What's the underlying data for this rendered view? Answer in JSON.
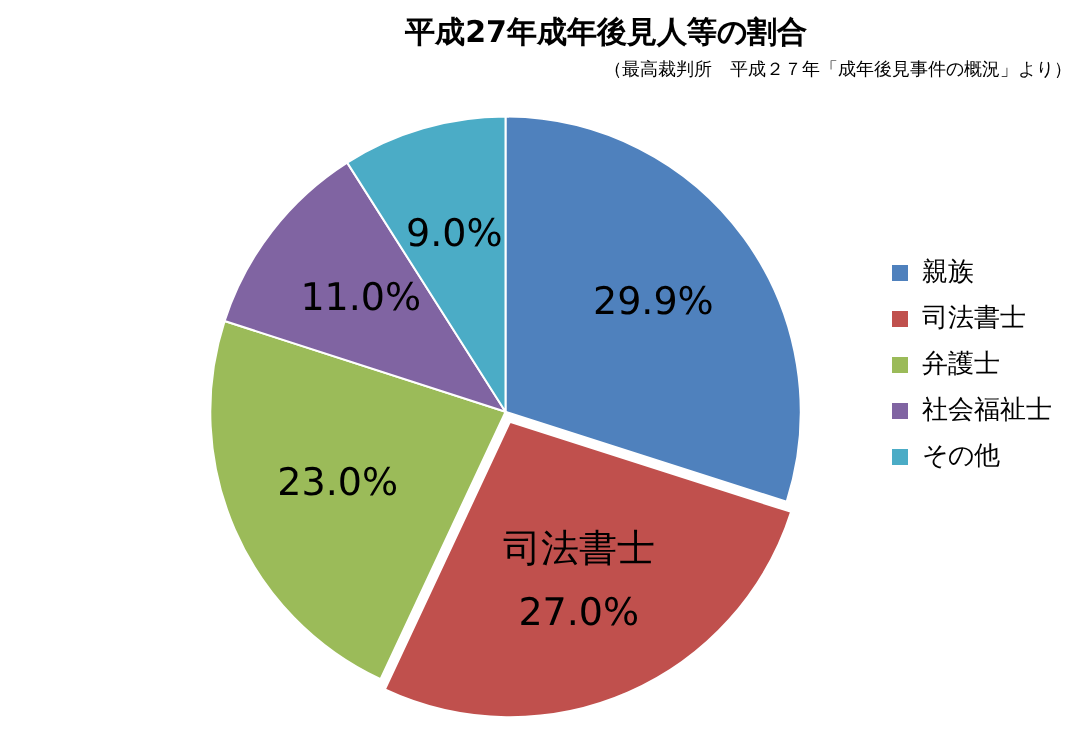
{
  "chart_data": {
    "type": "pie",
    "title": "平成27年成年後見人等の割合",
    "subtitle": "（最高裁判所　平成２７年「成年後見事件の概況」より）",
    "categories": [
      "親族",
      "司法書士",
      "弁護士",
      "社会福祉士",
      "その他"
    ],
    "values": [
      29.9,
      27.0,
      23.0,
      11.0,
      9.0
    ],
    "value_labels": [
      "29.9%",
      "27.0%",
      "23.0%",
      "11.0%",
      "9.0%"
    ],
    "colors": [
      "#4f81bd",
      "#c0504d",
      "#9bbb59",
      "#8064a2",
      "#4bacc6"
    ],
    "annotations": [
      {
        "text": "司法書士",
        "x": "司法書士"
      }
    ],
    "legend": "right"
  }
}
